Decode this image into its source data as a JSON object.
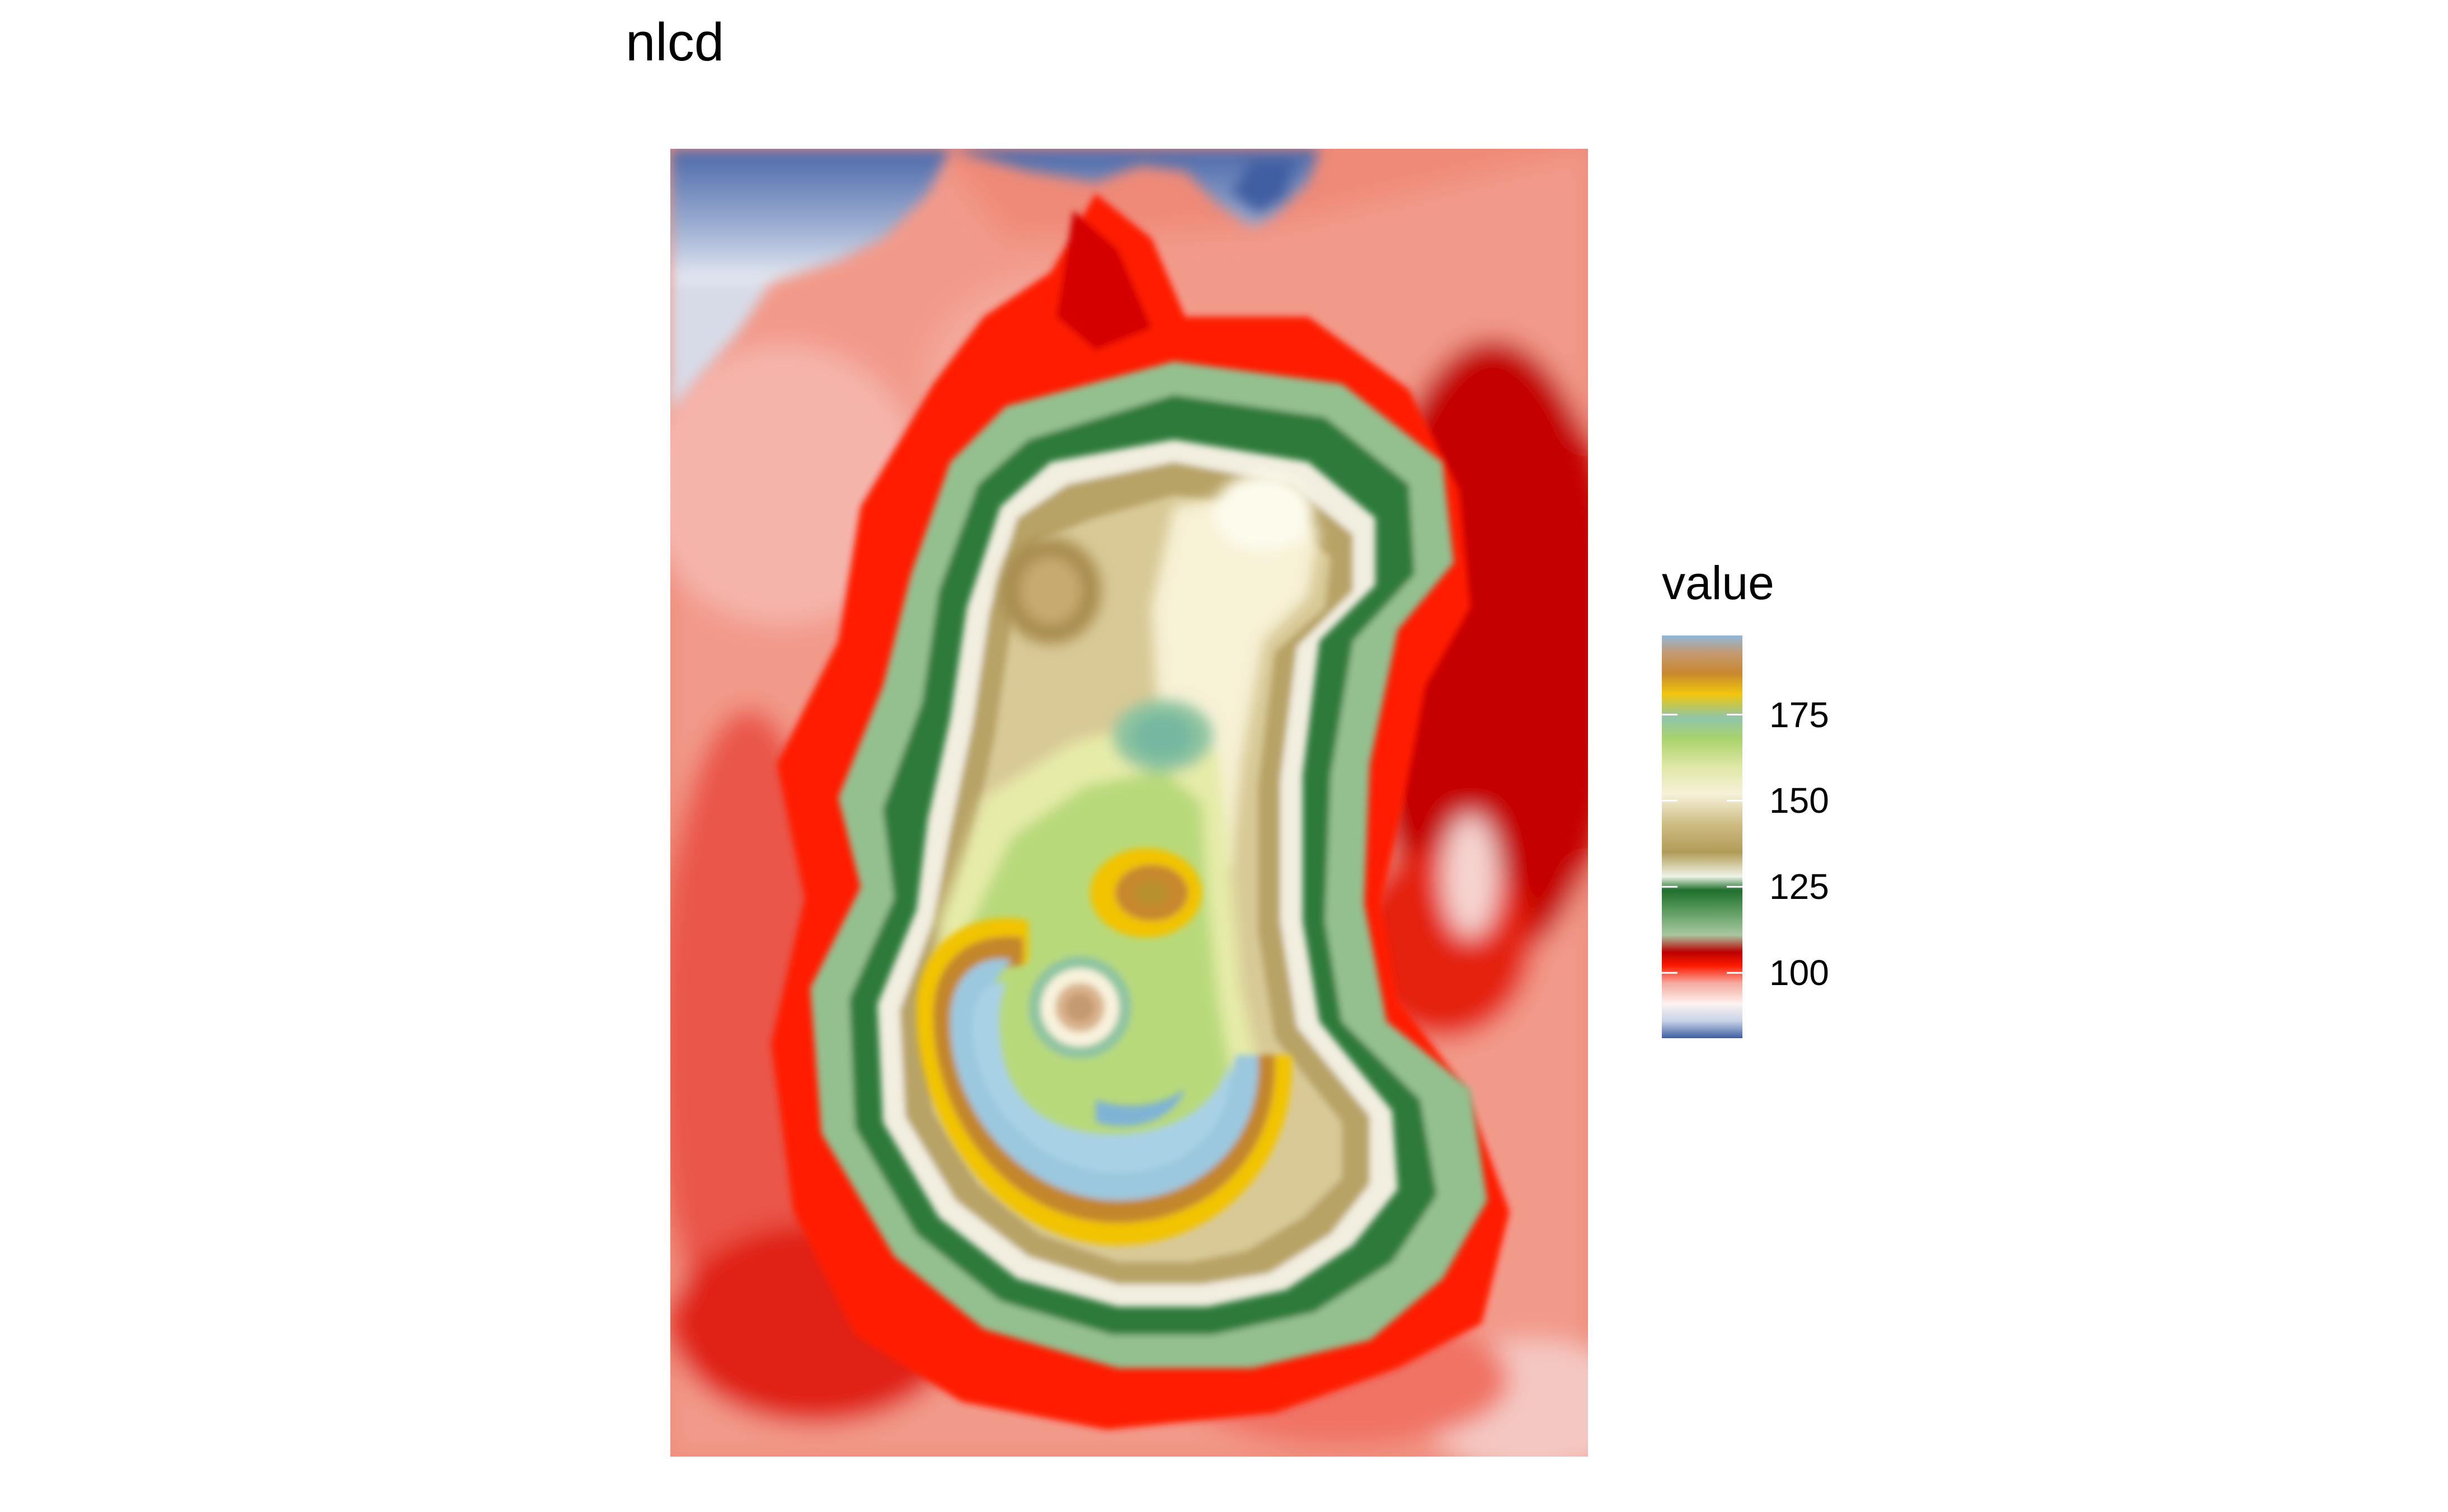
{
  "chart_data": {
    "type": "heatmap",
    "title": "nlcd",
    "legend": {
      "title": "value",
      "placement": "right",
      "range": [
        81,
        198
      ],
      "breaks": [
        175,
        150,
        125,
        100
      ]
    },
    "scale_colors": [
      {
        "value": 81,
        "color": "#3f5fa3"
      },
      {
        "value": 86,
        "color": "#c7d2e6"
      },
      {
        "value": 91,
        "color": "#fdf2f0"
      },
      {
        "value": 97,
        "color": "#f4a99e"
      },
      {
        "value": 102,
        "color": "#ff1a00"
      },
      {
        "value": 106,
        "color": "#bb0000"
      },
      {
        "value": 111,
        "color": "#a8c7a1"
      },
      {
        "value": 118,
        "color": "#5c9b5e"
      },
      {
        "value": 124,
        "color": "#1f6f2d"
      },
      {
        "value": 128,
        "color": "#eef4e6"
      },
      {
        "value": 135,
        "color": "#b29b58"
      },
      {
        "value": 143,
        "color": "#cdbb82"
      },
      {
        "value": 152,
        "color": "#f6f1d9"
      },
      {
        "value": 160,
        "color": "#dfe7a6"
      },
      {
        "value": 168,
        "color": "#a9d36b"
      },
      {
        "value": 174,
        "color": "#8fc6a8"
      },
      {
        "value": 181,
        "color": "#f0c60c"
      },
      {
        "value": 187,
        "color": "#c8882e"
      },
      {
        "value": 193,
        "color": "#c49a72"
      },
      {
        "value": 198,
        "color": "#8fb8d8"
      }
    ],
    "grid": false,
    "axes_visible": false
  }
}
